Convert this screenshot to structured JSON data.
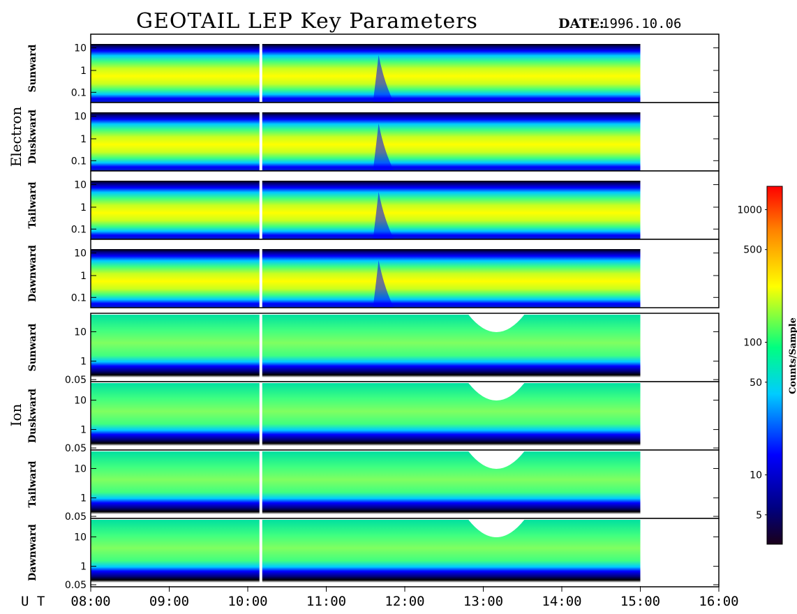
{
  "title": "GEOTAIL LEP Key Parameters",
  "date": {
    "label": "DATE:",
    "value": "1996.10.06"
  },
  "x_axis": {
    "label": "U T",
    "ticks": [
      "08:00",
      "09:00",
      "10:00",
      "11:00",
      "12:00",
      "13:00",
      "14:00",
      "15:00",
      "16:00"
    ]
  },
  "colorbar": {
    "label": "Counts/Sample",
    "ticks": [
      "5",
      "10",
      "50",
      "100",
      "500",
      "1000"
    ]
  },
  "colors": {
    "background": "#ffffff",
    "axes": "#000000"
  },
  "chart_data": {
    "type": "heatmap",
    "title": "GEOTAIL LEP Key Parameters",
    "x_unit": "UT",
    "x_range": [
      "08:00",
      "16:00"
    ],
    "data_coverage": [
      "08:00",
      "15:00"
    ],
    "data_gap": "10:10",
    "colorbar": {
      "label": "Counts/Sample",
      "scale": "log",
      "range": [
        3,
        1500
      ],
      "ticks": [
        5,
        10,
        50,
        100,
        500,
        1000
      ],
      "colormap": [
        "#1a001a",
        "#000080",
        "#0000ff",
        "#00ffff",
        "#00ff00",
        "#ffff00",
        "#ff8000",
        "#ff0000"
      ]
    },
    "groups": [
      {
        "name": "Electron",
        "panels": [
          "Sunward",
          "Duskward",
          "Tailward",
          "Dawnward"
        ],
        "y_scale": "log",
        "y_ticks": [
          "10",
          "1",
          "0.1"
        ]
      },
      {
        "name": "Ion",
        "panels": [
          "Sunward",
          "Duskward",
          "Tailward",
          "Dawnward"
        ],
        "y_scale": "log",
        "y_ticks": [
          "10",
          "1",
          "0.05"
        ]
      }
    ]
  }
}
